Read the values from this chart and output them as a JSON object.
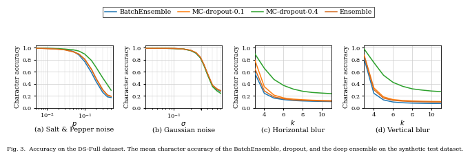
{
  "colors": {
    "BatchEnsemble": "#1f77b4",
    "MC-dropout-0.1": "#ff7f0e",
    "MC-dropout-0.4": "#2ca02c",
    "Ensemble": "#d46b1f"
  },
  "legend_labels": [
    "BatchEnsemble",
    "MC-dropout-0.1",
    "MC-dropout-0.4",
    "Ensemble"
  ],
  "subplot_titles": [
    "(a) Salt & Pepper noise",
    "(b) Gaussian noise",
    "(c) Horizontal blur",
    "(d) Vertical blur"
  ],
  "xlabels": [
    "$p$",
    "$\\sigma$",
    "$k$",
    "$k$"
  ],
  "ylabel": "Character accuracy",
  "figure_caption": "Fig. 3.  Accuracy on the DS-Full dataset. The mean character accuracy of the BatchEnsemble, dropout, and the deep ensemble on the synthetic test dataset.",
  "salt_pepper": {
    "p": [
      0.005,
      0.007,
      0.01,
      0.015,
      0.02,
      0.03,
      0.05,
      0.07,
      0.1,
      0.15,
      0.2,
      0.3,
      0.4,
      0.5
    ],
    "BatchEnsemble": [
      0.99,
      0.99,
      0.99,
      0.985,
      0.98,
      0.97,
      0.94,
      0.88,
      0.77,
      0.59,
      0.44,
      0.26,
      0.185,
      0.175
    ],
    "MC-dropout-0.1": [
      0.99,
      0.99,
      0.985,
      0.98,
      0.975,
      0.965,
      0.93,
      0.895,
      0.81,
      0.645,
      0.49,
      0.305,
      0.215,
      0.195
    ],
    "MC-dropout-0.4": [
      0.99,
      0.99,
      0.99,
      0.988,
      0.985,
      0.978,
      0.965,
      0.945,
      0.895,
      0.79,
      0.675,
      0.5,
      0.385,
      0.295
    ],
    "Ensemble": [
      0.99,
      0.99,
      0.987,
      0.982,
      0.977,
      0.965,
      0.935,
      0.895,
      0.81,
      0.645,
      0.49,
      0.3,
      0.215,
      0.195
    ]
  },
  "gaussian": {
    "sigma": [
      0.03,
      0.05,
      0.07,
      0.1,
      0.15,
      0.2,
      0.25,
      0.3,
      0.35,
      0.4,
      0.5,
      0.6,
      0.7
    ],
    "BatchEnsemble": [
      0.99,
      0.99,
      0.99,
      0.988,
      0.978,
      0.955,
      0.91,
      0.835,
      0.71,
      0.575,
      0.37,
      0.305,
      0.275
    ],
    "MC-dropout-0.1": [
      0.99,
      0.99,
      0.99,
      0.988,
      0.978,
      0.958,
      0.92,
      0.845,
      0.72,
      0.585,
      0.375,
      0.315,
      0.285
    ],
    "MC-dropout-0.4": [
      0.99,
      0.99,
      0.99,
      0.987,
      0.977,
      0.954,
      0.912,
      0.835,
      0.705,
      0.565,
      0.355,
      0.285,
      0.245
    ],
    "Ensemble": [
      0.99,
      0.99,
      0.99,
      0.988,
      0.978,
      0.958,
      0.92,
      0.845,
      0.72,
      0.585,
      0.38,
      0.32,
      0.29
    ]
  },
  "horiz_blur": {
    "k": [
      3,
      4,
      5,
      6,
      7,
      8,
      9,
      10,
      11
    ],
    "BatchEnsemble": [
      0.585,
      0.245,
      0.165,
      0.14,
      0.125,
      0.118,
      0.113,
      0.11,
      0.108
    ],
    "MC-dropout-0.1": [
      0.805,
      0.355,
      0.215,
      0.168,
      0.148,
      0.138,
      0.13,
      0.125,
      0.122
    ],
    "MC-dropout-0.4": [
      0.905,
      0.66,
      0.475,
      0.375,
      0.315,
      0.278,
      0.258,
      0.248,
      0.238
    ],
    "Ensemble": [
      0.665,
      0.285,
      0.185,
      0.153,
      0.135,
      0.128,
      0.122,
      0.118,
      0.115
    ]
  },
  "vert_blur": {
    "k": [
      3,
      4,
      5,
      6,
      7,
      8,
      9,
      10,
      11
    ],
    "BatchEnsemble": [
      0.815,
      0.245,
      0.135,
      0.1,
      0.088,
      0.082,
      0.079,
      0.077,
      0.076
    ],
    "MC-dropout-0.1": [
      0.875,
      0.335,
      0.185,
      0.14,
      0.125,
      0.118,
      0.113,
      0.11,
      0.108
    ],
    "MC-dropout-0.4": [
      0.978,
      0.755,
      0.545,
      0.425,
      0.36,
      0.318,
      0.298,
      0.282,
      0.272
    ],
    "Ensemble": [
      0.865,
      0.305,
      0.165,
      0.128,
      0.115,
      0.108,
      0.104,
      0.101,
      0.099
    ]
  }
}
